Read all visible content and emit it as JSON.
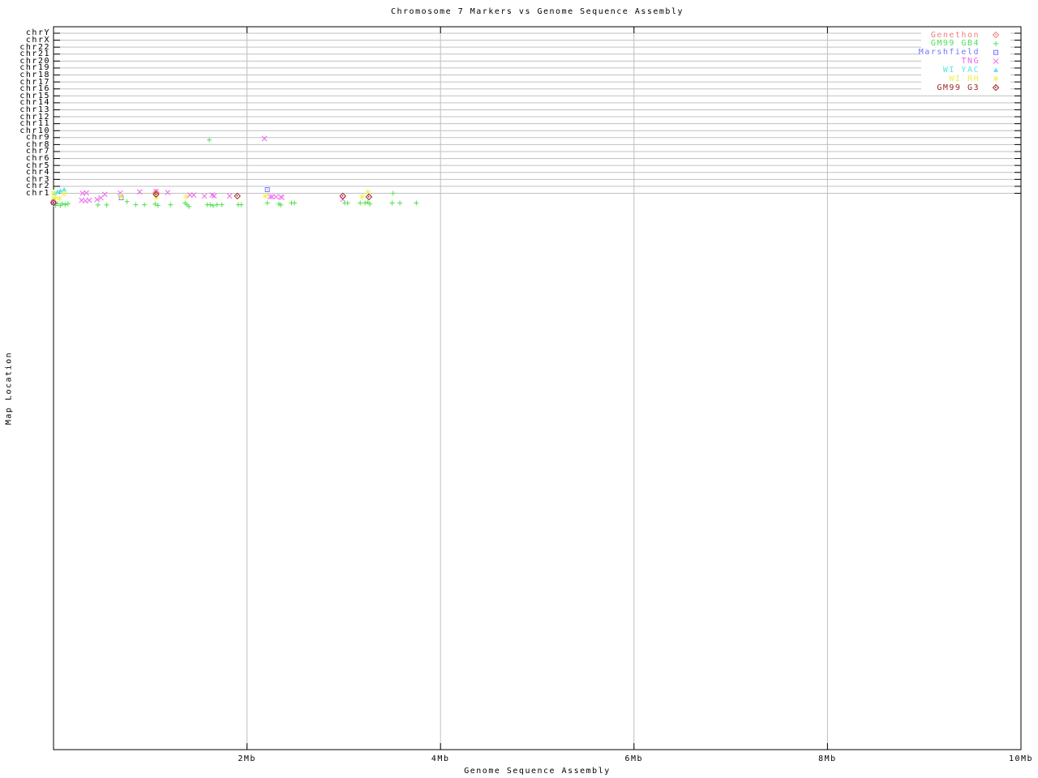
{
  "title": "Chromosome 7 Markers vs Genome Sequence Assembly",
  "axes": {
    "x_label": "Genome Sequence Assembly",
    "y_label": "Map Location",
    "x_tick_labels": [
      "2Mb",
      "4Mb",
      "6Mb",
      "8Mb",
      "10Mb"
    ],
    "x_tick_values_mb": [
      2,
      4,
      6,
      8,
      10
    ],
    "x_range_mb": [
      0,
      10
    ],
    "y_tick_labels_bottom_to_top": [
      "chr1",
      "chr2",
      "chr3",
      "chr4",
      "chr5",
      "chr6",
      "chr7",
      "chr8",
      "chr9",
      "chr10",
      "chr11",
      "chr12",
      "chr13",
      "chr14",
      "chr15",
      "chr16",
      "chr17",
      "chr18",
      "chr19",
      "chr20",
      "chr21",
      "chr22",
      "chrX",
      "chrY"
    ]
  },
  "colors": {
    "grid": "#c0c0c0",
    "border": "#000000",
    "background": "#ffffff",
    "genethon": "#f08080",
    "gm99_gb4": "#50e150",
    "marshfield": "#7575ff",
    "tng": "#ee66ee",
    "wi_yac": "#5fe3e3",
    "wi_rh": "#efef48",
    "gm99_g3": "#9c1f1f"
  },
  "legend": {
    "entries": [
      {
        "label": "Genethon",
        "marker": "diamond-dot",
        "color": "#f08080"
      },
      {
        "label": "GM99 GB4",
        "marker": "plus",
        "color": "#50e150"
      },
      {
        "label": "Marshfield",
        "marker": "square-dot",
        "color": "#7575ff"
      },
      {
        "label": "TNG",
        "marker": "x",
        "color": "#ee66ee"
      },
      {
        "label": "WI YAC",
        "marker": "triangle-filled",
        "color": "#5fe3e3"
      },
      {
        "label": "WI RH",
        "marker": "star",
        "color": "#efef48"
      },
      {
        "label": "GM99 G3",
        "marker": "diamond-dot",
        "color": "#9c1f1f"
      }
    ]
  },
  "chart_data": {
    "type": "scatter",
    "title": "Chromosome 7 Markers vs Genome Sequence Assembly",
    "xlabel": "Genome Sequence Assembly",
    "ylabel": "Map Location",
    "x_unit": "Mb",
    "xlim": [
      0,
      10
    ],
    "y_axis_note": "categorical chromosome rows; chr1=1 ... chr22=22, chrX=23, chrY=24; fractional values = position between/below tick rows as rendered",
    "grid": true,
    "legend_position": "top-right",
    "series": [
      {
        "name": "Genethon",
        "marker": "diamond-dot",
        "color": "#f08080",
        "points": [
          [
            1.06,
            1.12
          ]
        ]
      },
      {
        "name": "GM99 GB4",
        "marker": "plus",
        "color": "#50e150",
        "points": [
          [
            0.0,
            -0.55
          ],
          [
            0.02,
            -0.75
          ],
          [
            0.04,
            -0.5
          ],
          [
            0.07,
            -0.78
          ],
          [
            0.09,
            -0.52
          ],
          [
            0.12,
            -0.65
          ],
          [
            0.15,
            -0.5
          ],
          [
            0.46,
            -0.68
          ],
          [
            0.55,
            -0.68
          ],
          [
            0.76,
            -0.2
          ],
          [
            0.85,
            -0.65
          ],
          [
            0.94,
            -0.65
          ],
          [
            1.05,
            -0.55
          ],
          [
            1.08,
            -0.75
          ],
          [
            1.21,
            -0.65
          ],
          [
            1.36,
            -0.4
          ],
          [
            1.38,
            -0.65
          ],
          [
            1.4,
            -0.9
          ],
          [
            1.59,
            -0.65
          ],
          [
            1.62,
            -0.65
          ],
          [
            1.65,
            -0.78
          ],
          [
            1.69,
            -0.65
          ],
          [
            1.74,
            -0.65
          ],
          [
            1.91,
            -0.65
          ],
          [
            1.94,
            -0.65
          ],
          [
            2.21,
            -0.4
          ],
          [
            2.33,
            -0.55
          ],
          [
            2.35,
            -0.68
          ],
          [
            2.46,
            -0.4
          ],
          [
            2.49,
            -0.4
          ],
          [
            3.01,
            -0.4
          ],
          [
            3.04,
            -0.4
          ],
          [
            3.17,
            -0.4
          ],
          [
            3.22,
            -0.4
          ],
          [
            3.25,
            -0.3
          ],
          [
            3.27,
            -0.55
          ],
          [
            3.5,
            -0.4
          ],
          [
            3.51,
            1.0
          ],
          [
            3.58,
            -0.4
          ],
          [
            3.75,
            -0.4
          ],
          [
            1.61,
            8.67
          ]
        ]
      },
      {
        "name": "Marshfield",
        "marker": "square-dot",
        "color": "#7575ff",
        "points": [
          [
            0.0,
            -0.2
          ],
          [
            0.7,
            0.36
          ],
          [
            2.21,
            1.52
          ]
        ]
      },
      {
        "name": "TNG",
        "marker": "x",
        "color": "#ee66ee",
        "points": [
          [
            0.0,
            -0.35
          ],
          [
            0.29,
            0.0
          ],
          [
            0.33,
            -0.1
          ],
          [
            0.37,
            0.0
          ],
          [
            0.3,
            1.0
          ],
          [
            0.34,
            1.06
          ],
          [
            0.45,
            0.1
          ],
          [
            0.49,
            0.35
          ],
          [
            0.53,
            0.85
          ],
          [
            0.69,
            1.05
          ],
          [
            0.89,
            1.2
          ],
          [
            1.06,
            1.3
          ],
          [
            1.18,
            1.12
          ],
          [
            1.41,
            0.75
          ],
          [
            1.45,
            0.75
          ],
          [
            1.56,
            0.6
          ],
          [
            1.64,
            0.75
          ],
          [
            1.66,
            0.62
          ],
          [
            1.82,
            0.62
          ],
          [
            2.24,
            0.5
          ],
          [
            2.26,
            0.5
          ],
          [
            2.3,
            0.5
          ],
          [
            2.35,
            0.5
          ],
          [
            2.36,
            0.38
          ],
          [
            2.99,
            0.12
          ],
          [
            2.18,
            8.86
          ]
        ]
      },
      {
        "name": "WI YAC",
        "marker": "triangle-filled",
        "color": "#5fe3e3",
        "points": [
          [
            0.01,
            1.0
          ],
          [
            0.04,
            1.2
          ],
          [
            0.07,
            1.4
          ],
          [
            0.11,
            1.55
          ]
        ]
      },
      {
        "name": "WI RH",
        "marker": "star",
        "color": "#efef48",
        "points": [
          [
            0.0,
            1.05
          ],
          [
            0.0,
            0.28
          ],
          [
            0.02,
            0.4
          ],
          [
            0.06,
            0.28
          ],
          [
            0.11,
            0.95
          ],
          [
            0.7,
            0.5
          ],
          [
            1.06,
            0.4
          ],
          [
            1.37,
            0.5
          ],
          [
            2.19,
            0.6
          ],
          [
            3.19,
            0.5
          ],
          [
            3.25,
            1.15
          ]
        ]
      },
      {
        "name": "GM99 G3",
        "marker": "diamond-dot",
        "color": "#9c1f1f",
        "points": [
          [
            0.0,
            -0.35
          ],
          [
            1.06,
            0.85
          ],
          [
            1.9,
            0.6
          ],
          [
            2.99,
            0.6
          ],
          [
            3.26,
            0.48
          ]
        ]
      }
    ]
  }
}
